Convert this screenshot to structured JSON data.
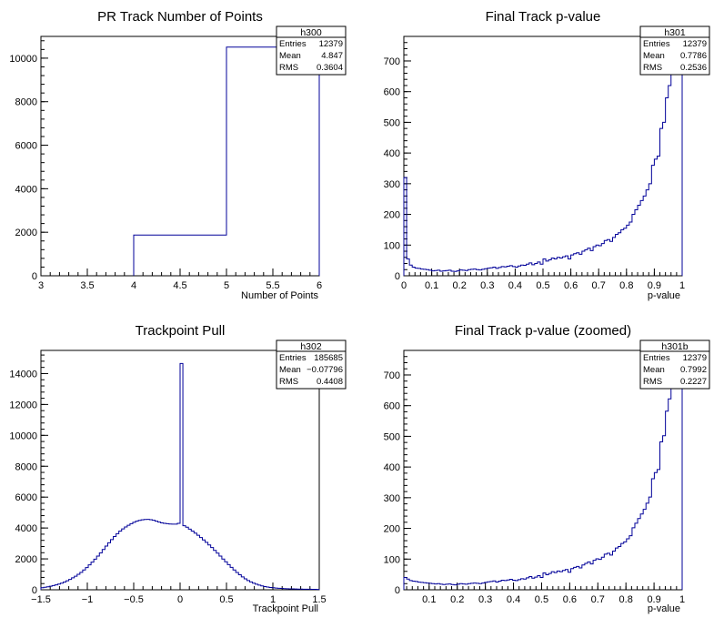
{
  "chart_data": [
    {
      "type": "histogram",
      "title": "PR Track Number of Points",
      "xlabel": "Number of Points",
      "ylabel": "",
      "xlim": [
        3,
        6
      ],
      "ylim": [
        0,
        11000
      ],
      "xticks": [
        "3",
        "3.5",
        "4",
        "4.5",
        "5",
        "5.5",
        "6"
      ],
      "yticks": [
        "0",
        "2000",
        "4000",
        "6000",
        "8000",
        "10000"
      ],
      "bin_edges": [
        4,
        5,
        6
      ],
      "counts": [
        1870,
        10509
      ],
      "stats": {
        "name": "h300",
        "rows": [
          [
            "Entries",
            "12379"
          ],
          [
            "Mean",
            "4.847"
          ],
          [
            "RMS",
            "0.3604"
          ]
        ]
      },
      "line_color": "#000099"
    },
    {
      "type": "histogram",
      "title": "Final Track p-value",
      "xlabel": "p-value",
      "ylabel": "",
      "xlim": [
        0,
        1
      ],
      "ylim": [
        0,
        780
      ],
      "xticks": [
        "0",
        "0.1",
        "0.2",
        "0.3",
        "0.4",
        "0.5",
        "0.6",
        "0.7",
        "0.8",
        "0.9",
        "1"
      ],
      "yticks": [
        "0",
        "100",
        "200",
        "300",
        "400",
        "500",
        "600",
        "700"
      ],
      "bin_start": 0,
      "bin_width": 0.01,
      "counts": [
        320,
        55,
        35,
        28,
        25,
        24,
        22,
        21,
        20,
        18,
        16,
        17,
        18,
        15,
        16,
        17,
        18,
        15,
        14,
        16,
        19,
        18,
        17,
        20,
        21,
        22,
        20,
        19,
        21,
        23,
        25,
        26,
        28,
        24,
        27,
        30,
        29,
        31,
        33,
        30,
        28,
        32,
        35,
        34,
        38,
        42,
        36,
        40,
        45,
        38,
        55,
        48,
        52,
        58,
        55,
        60,
        58,
        62,
        65,
        55,
        68,
        72,
        75,
        70,
        80,
        85,
        90,
        82,
        95,
        100,
        98,
        105,
        115,
        118,
        112,
        125,
        135,
        140,
        150,
        155,
        165,
        175,
        200,
        215,
        230,
        245,
        260,
        280,
        300,
        360,
        380,
        390,
        480,
        500,
        580,
        620,
        660,
        690,
        780,
        780
      ],
      "stats": {
        "name": "h301",
        "rows": [
          [
            "Entries",
            "12379"
          ],
          [
            "Mean",
            "0.7786"
          ],
          [
            "RMS",
            "0.2536"
          ]
        ]
      },
      "line_color": "#000099"
    },
    {
      "type": "histogram",
      "title": "Trackpoint Pull",
      "xlabel": "Trackpoint Pull",
      "ylabel": "",
      "xlim": [
        -1.5,
        1.5
      ],
      "ylim": [
        0,
        15500
      ],
      "xticks": [
        "−1.5",
        "−1",
        "−0.5",
        "0",
        "0.5",
        "1",
        "1.5"
      ],
      "yticks": [
        "0",
        "2000",
        "4000",
        "6000",
        "8000",
        "10000",
        "12000",
        "14000"
      ],
      "bin_start": -1.5,
      "bin_width": 0.03,
      "counts": [
        130,
        160,
        190,
        230,
        270,
        320,
        370,
        430,
        500,
        580,
        670,
        770,
        880,
        1000,
        1130,
        1280,
        1440,
        1610,
        1790,
        1980,
        2180,
        2390,
        2610,
        2830,
        3040,
        3250,
        3450,
        3630,
        3800,
        3940,
        4070,
        4180,
        4280,
        4370,
        4440,
        4490,
        4530,
        4550,
        4560,
        4540,
        4500,
        4440,
        4380,
        4330,
        4300,
        4280,
        4260,
        4250,
        4250,
        4300,
        14650,
        4150,
        4050,
        3930,
        3800,
        3670,
        3530,
        3380,
        3230,
        3070,
        2900,
        2730,
        2550,
        2370,
        2180,
        1990,
        1810,
        1630,
        1450,
        1280,
        1120,
        970,
        830,
        710,
        600,
        510,
        430,
        360,
        300,
        250,
        210,
        180,
        150,
        130,
        110,
        95,
        85,
        75,
        68,
        62,
        56,
        52,
        48,
        44,
        40,
        37,
        34,
        31,
        28,
        25
      ],
      "stats": {
        "name": "h302",
        "rows": [
          [
            "Entries",
            "185685"
          ],
          [
            "Mean",
            "−0.07796"
          ],
          [
            "RMS",
            "0.4408"
          ]
        ]
      },
      "line_color": "#000099"
    },
    {
      "type": "histogram",
      "title": "Final Track p-value (zoomed)",
      "xlabel": "p-value",
      "ylabel": "",
      "xlim": [
        0.01,
        1
      ],
      "ylim": [
        0,
        780
      ],
      "xticks": [
        "0.1",
        "0.2",
        "0.3",
        "0.4",
        "0.5",
        "0.6",
        "0.7",
        "0.8",
        "0.9",
        "1"
      ],
      "xtick_values": [
        0.1,
        0.2,
        0.3,
        0.4,
        0.5,
        0.6,
        0.7,
        0.8,
        0.9,
        1.0
      ],
      "yticks": [
        "0",
        "100",
        "200",
        "300",
        "400",
        "500",
        "600",
        "700"
      ],
      "bin_start": 0.01,
      "bin_width": 0.0099,
      "counts": [
        40,
        35,
        30,
        28,
        27,
        25,
        24,
        23,
        22,
        21,
        20,
        19,
        20,
        18,
        17,
        18,
        19,
        17,
        16,
        18,
        20,
        19,
        18,
        20,
        21,
        22,
        21,
        20,
        22,
        24,
        26,
        27,
        29,
        25,
        28,
        31,
        30,
        32,
        34,
        31,
        30,
        33,
        36,
        35,
        39,
        43,
        38,
        41,
        46,
        40,
        55,
        49,
        53,
        59,
        56,
        61,
        59,
        63,
        66,
        57,
        69,
        73,
        76,
        71,
        81,
        86,
        91,
        84,
        96,
        101,
        99,
        106,
        116,
        119,
        113,
        126,
        136,
        141,
        151,
        156,
        166,
        176,
        202,
        217,
        232,
        247,
        262,
        282,
        302,
        362,
        382,
        392,
        482,
        502,
        582,
        622,
        662,
        692,
        780,
        780
      ],
      "stats": {
        "name": "h301b",
        "rows": [
          [
            "Entries",
            "12379"
          ],
          [
            "Mean",
            "0.7992"
          ],
          [
            "RMS",
            "0.2227"
          ]
        ]
      },
      "line_color": "#000099"
    }
  ]
}
